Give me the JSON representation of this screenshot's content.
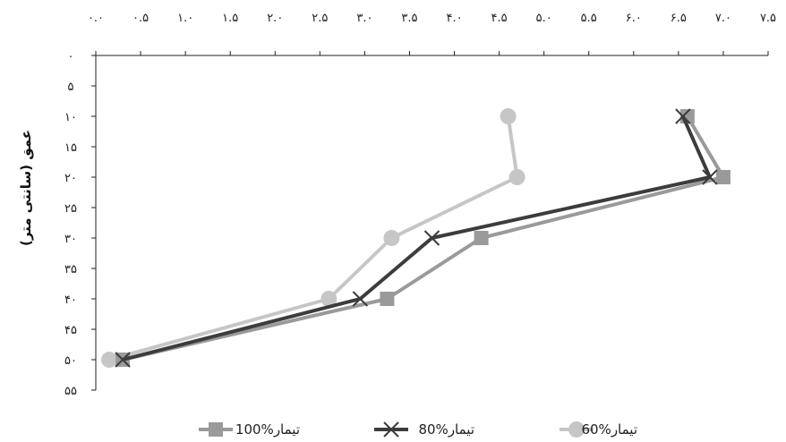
{
  "chart_data": {
    "type": "line",
    "ylabel": "عمق (سانتی متر)",
    "x_axis_position": "top",
    "y_axis_reversed": true,
    "xlim": [
      0,
      7.5
    ],
    "ylim": [
      0,
      55
    ],
    "x_ticks": [
      "۰.۰",
      "۰.۵",
      "۱.۰",
      "۱.۵",
      "۲.۰",
      "۲.۵",
      "۳.۰",
      "۳.۵",
      "۴.۰",
      "۴.۵",
      "۵.۰",
      "۵.۵",
      "۶.۰",
      "۶.۵",
      "۷.۰",
      "۷.۵"
    ],
    "y_ticks": [
      "۰",
      "۵",
      "۱۰",
      "۱۵",
      "۲۰",
      "۲۵",
      "۳۰",
      "۳۵",
      "۴۰",
      "۴۵",
      "۵۰",
      "۵۵"
    ],
    "grid": false,
    "legend_position": "bottom",
    "series": [
      {
        "name": "100%تیمار",
        "color": "#9a9a9a",
        "marker": "square",
        "points": [
          {
            "x": 6.6,
            "y": 10
          },
          {
            "x": 7.0,
            "y": 20
          },
          {
            "x": 4.3,
            "y": 30
          },
          {
            "x": 3.25,
            "y": 40
          },
          {
            "x": 0.3,
            "y": 50
          }
        ]
      },
      {
        "name": "80%تیمار",
        "color": "#3c3c3c",
        "marker": "x",
        "points": [
          {
            "x": 6.55,
            "y": 10
          },
          {
            "x": 6.85,
            "y": 20
          },
          {
            "x": 3.75,
            "y": 30
          },
          {
            "x": 2.95,
            "y": 40
          },
          {
            "x": 0.3,
            "y": 50
          }
        ]
      },
      {
        "name": "60%تیمار",
        "color": "#c6c6c6",
        "marker": "circle",
        "points": [
          {
            "x": 4.6,
            "y": 10
          },
          {
            "x": 4.7,
            "y": 20
          },
          {
            "x": 3.3,
            "y": 30
          },
          {
            "x": 2.6,
            "y": 40
          },
          {
            "x": 0.15,
            "y": 50
          }
        ]
      }
    ]
  }
}
